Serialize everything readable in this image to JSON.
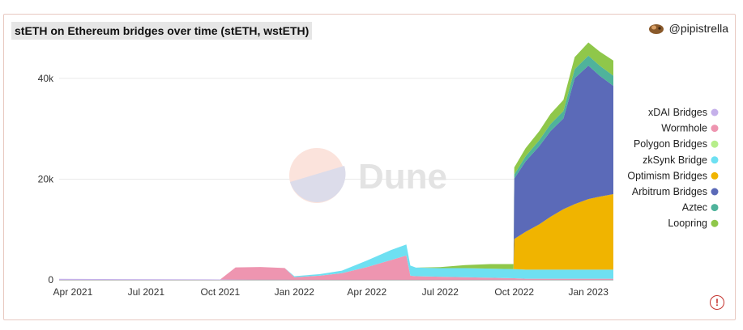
{
  "header": {
    "title": "stETH on Ethereum bridges over time (stETH, wstETH)",
    "author": "@pipistrella"
  },
  "watermark": "Dune",
  "chart_data": {
    "type": "area",
    "stacked": true,
    "title": "stETH on Ethereum bridges over time (stETH, wstETH)",
    "xlabel": "",
    "ylabel": "",
    "ylim": [
      0,
      44000
    ],
    "y_ticks": [
      0,
      20000,
      40000
    ],
    "y_tick_labels": [
      "0",
      "20k",
      "40k"
    ],
    "x_tick_labels": [
      "Apr 2021",
      "Jul 2021",
      "Oct 2021",
      "Jan 2022",
      "Apr 2022",
      "Jul 2022",
      "Oct 2022",
      "Jan 2023"
    ],
    "x_range": [
      "2021-03-15",
      "2023-02-01"
    ],
    "grid": true,
    "legend_position": "right",
    "x": [
      "2021-03-15",
      "2021-06-01",
      "2021-09-15",
      "2021-10-01",
      "2021-10-20",
      "2021-11-20",
      "2021-12-20",
      "2022-01-01",
      "2022-02-01",
      "2022-03-01",
      "2022-04-01",
      "2022-05-01",
      "2022-05-20",
      "2022-05-25",
      "2022-06-01",
      "2022-07-01",
      "2022-08-01",
      "2022-09-01",
      "2022-09-30",
      "2022-10-01",
      "2022-10-15",
      "2022-11-01",
      "2022-11-15",
      "2022-12-01",
      "2022-12-15",
      "2023-01-01",
      "2023-01-15",
      "2023-02-01"
    ],
    "series": [
      {
        "name": "xDAI Bridges",
        "color": "#c5b0ea",
        "values": [
          200,
          150,
          100,
          80,
          60,
          50,
          40,
          30,
          30,
          30,
          30,
          30,
          30,
          30,
          30,
          30,
          30,
          30,
          30,
          30,
          30,
          30,
          30,
          30,
          30,
          30,
          30,
          30
        ]
      },
      {
        "name": "Wormhole",
        "color": "#ee95b0",
        "values": [
          0,
          0,
          0,
          0,
          2400,
          2500,
          2300,
          500,
          800,
          1300,
          2500,
          3900,
          4800,
          800,
          700,
          600,
          500,
          400,
          300,
          300,
          200,
          200,
          200,
          200,
          200,
          200,
          200,
          200
        ]
      },
      {
        "name": "Polygon Bridges",
        "color": "#b6ee8a",
        "values": [
          0,
          0,
          0,
          0,
          0,
          0,
          0,
          0,
          0,
          0,
          0,
          0,
          0,
          0,
          0,
          0,
          0,
          0,
          0,
          0,
          0,
          0,
          0,
          0,
          0,
          0,
          0,
          0
        ]
      },
      {
        "name": "zkSynk Bridge",
        "color": "#6ee0f2",
        "values": [
          0,
          0,
          0,
          0,
          0,
          0,
          0,
          200,
          300,
          500,
          1300,
          2000,
          2200,
          2000,
          1700,
          1700,
          1800,
          1800,
          1800,
          1800,
          1800,
          1800,
          1800,
          1800,
          1800,
          1800,
          1800,
          1800
        ]
      },
      {
        "name": "Optimism Bridges",
        "color": "#f0b400",
        "values": [
          0,
          0,
          0,
          0,
          0,
          0,
          0,
          0,
          0,
          0,
          0,
          0,
          0,
          0,
          0,
          0,
          0,
          0,
          0,
          6000,
          7500,
          9000,
          10500,
          12000,
          13000,
          14000,
          14500,
          15000
        ]
      },
      {
        "name": "Arbitrum Bridges",
        "color": "#5b6ab8",
        "values": [
          0,
          0,
          0,
          0,
          0,
          0,
          0,
          0,
          0,
          0,
          0,
          0,
          0,
          0,
          0,
          0,
          0,
          0,
          0,
          12000,
          14000,
          15500,
          17000,
          18000,
          25000,
          26500,
          24000,
          21500
        ]
      },
      {
        "name": "Aztec",
        "color": "#4fb39b",
        "values": [
          0,
          0,
          0,
          0,
          0,
          0,
          0,
          0,
          0,
          0,
          0,
          0,
          0,
          0,
          0,
          0,
          0,
          0,
          0,
          800,
          1000,
          1200,
          1400,
          1500,
          1800,
          2000,
          2000,
          2000
        ]
      },
      {
        "name": "Loopring",
        "color": "#8fc74a",
        "values": [
          0,
          0,
          0,
          0,
          0,
          0,
          0,
          0,
          0,
          0,
          0,
          0,
          0,
          0,
          0,
          200,
          600,
          900,
          1000,
          1400,
          1600,
          1800,
          2000,
          2200,
          2400,
          2600,
          2800,
          3000
        ]
      }
    ]
  }
}
